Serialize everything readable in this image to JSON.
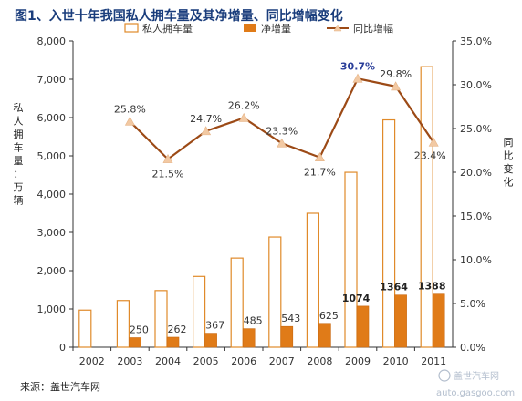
{
  "chart_data": {
    "type": "bar",
    "title": "图1、入世十年我国私人拥车量及其净增量、同比增幅变化",
    "categories": [
      "2002",
      "2003",
      "2004",
      "2005",
      "2006",
      "2007",
      "2008",
      "2009",
      "2010",
      "2011"
    ],
    "series": [
      {
        "name": "私人拥车量",
        "type": "bar",
        "axis": "left",
        "style": "outline",
        "values": [
          970,
          1220,
          1480,
          1850,
          2330,
          2880,
          3500,
          4570,
          5940,
          7330
        ]
      },
      {
        "name": "净增量",
        "type": "bar",
        "axis": "left",
        "style": "filled",
        "values": [
          null,
          250,
          262,
          367,
          485,
          543,
          625,
          1074,
          1364,
          1388
        ],
        "labels": [
          "",
          "250",
          "262",
          "367",
          "485",
          "543",
          "625",
          "1074",
          "1364",
          "1388"
        ]
      },
      {
        "name": "同比增幅",
        "type": "line",
        "axis": "right",
        "values": [
          null,
          25.8,
          21.5,
          24.7,
          26.2,
          23.3,
          21.7,
          30.7,
          29.8,
          23.4
        ],
        "labels": [
          "",
          "25.8%",
          "21.5%",
          "24.7%",
          "26.2%",
          "23.3%",
          "21.7%",
          "30.7%",
          "29.8%",
          "23.4%"
        ]
      }
    ],
    "y_left": {
      "label": "私人拥车量：万辆",
      "min": 0,
      "max": 8000,
      "step": 1000,
      "ticks": [
        "0",
        "1,000",
        "2,000",
        "3,000",
        "4,000",
        "5,000",
        "6,000",
        "7,000",
        "8,000"
      ]
    },
    "y_right": {
      "label": "同比变化",
      "min": 0,
      "max": 35,
      "step": 5,
      "ticks": [
        "0.0%",
        "5.0%",
        "10.0%",
        "15.0%",
        "20.0%",
        "25.0%",
        "30.0%",
        "35.0%"
      ]
    },
    "grid": false,
    "legend_position": "top",
    "colors": {
      "outline": "#e08a2a",
      "filled": "#e07b18",
      "line": "#9c4a16",
      "marker": "#f2c9a3",
      "title": "#1a3d7c"
    }
  },
  "source": "来源：盖世汽车网",
  "watermark": {
    "brand": "盖世汽车网",
    "domain": "auto.gasgoo.com"
  }
}
